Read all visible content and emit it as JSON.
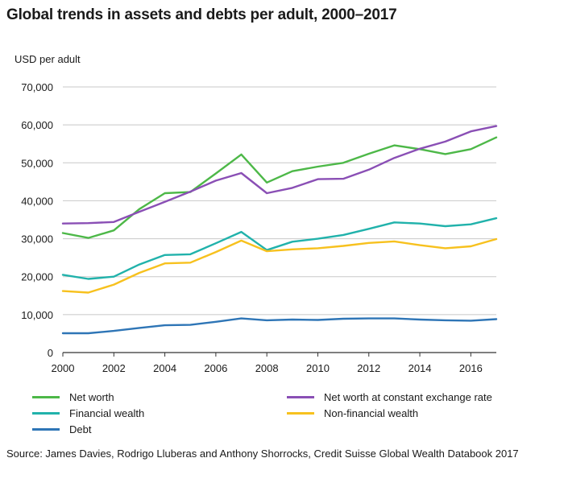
{
  "chart_data": {
    "type": "line",
    "title": "Global trends in assets and debts per adult, 2000–2017",
    "ylabel": "USD per adult",
    "xlabel": "",
    "ylim": [
      0,
      70000
    ],
    "xlim": [
      2000,
      2017
    ],
    "grid": true,
    "legend_position": "bottom",
    "y_ticks": [
      "0",
      "10,000",
      "20,000",
      "30,000",
      "40,000",
      "50,000",
      "60,000",
      "70,000"
    ],
    "y_tick_values": [
      0,
      10000,
      20000,
      30000,
      40000,
      50000,
      60000,
      70000
    ],
    "x_ticks": [
      "2000",
      "2002",
      "2004",
      "2006",
      "2008",
      "2010",
      "2012",
      "2014",
      "2016"
    ],
    "x_tick_values": [
      2000,
      2002,
      2004,
      2006,
      2008,
      2010,
      2012,
      2014,
      2016
    ],
    "x": [
      2000,
      2001,
      2002,
      2003,
      2004,
      2005,
      2006,
      2007,
      2008,
      2009,
      2010,
      2011,
      2012,
      2013,
      2014,
      2015,
      2016,
      2017
    ],
    "series": [
      {
        "name": "Net worth",
        "color": "#4db848",
        "values": [
          31500,
          30200,
          32200,
          37800,
          42000,
          42300,
          47200,
          52200,
          44800,
          47800,
          49000,
          50000,
          52400,
          54600,
          53600,
          52300,
          53600,
          56700
        ]
      },
      {
        "name": "Net worth at constant exchange rate",
        "color": "#8a4fb5",
        "values": [
          34000,
          34100,
          34400,
          37100,
          39700,
          42400,
          45300,
          47300,
          42000,
          43400,
          45700,
          45800,
          48200,
          51300,
          53700,
          55600,
          58300,
          59700
        ]
      },
      {
        "name": "Financial wealth",
        "color": "#21b2ab",
        "values": [
          20500,
          19400,
          20000,
          23200,
          25700,
          25900,
          28800,
          31800,
          27000,
          29200,
          30000,
          31000,
          32600,
          34300,
          34000,
          33300,
          33800,
          35400
        ]
      },
      {
        "name": "Non-financial wealth",
        "color": "#f7c11e",
        "values": [
          16200,
          15800,
          17900,
          21000,
          23500,
          23700,
          26500,
          29500,
          26700,
          27200,
          27500,
          28100,
          28900,
          29300,
          28300,
          27500,
          28000,
          29900
        ]
      },
      {
        "name": "Debt",
        "color": "#2e75b6",
        "values": [
          5100,
          5100,
          5700,
          6500,
          7200,
          7300,
          8100,
          9000,
          8500,
          8700,
          8600,
          8900,
          9000,
          9000,
          8700,
          8500,
          8400,
          8800
        ]
      }
    ],
    "source": "Source: James Davies, Rodrigo Lluberas and Anthony Shorrocks, Credit Suisse Global Wealth Databook 2017"
  }
}
